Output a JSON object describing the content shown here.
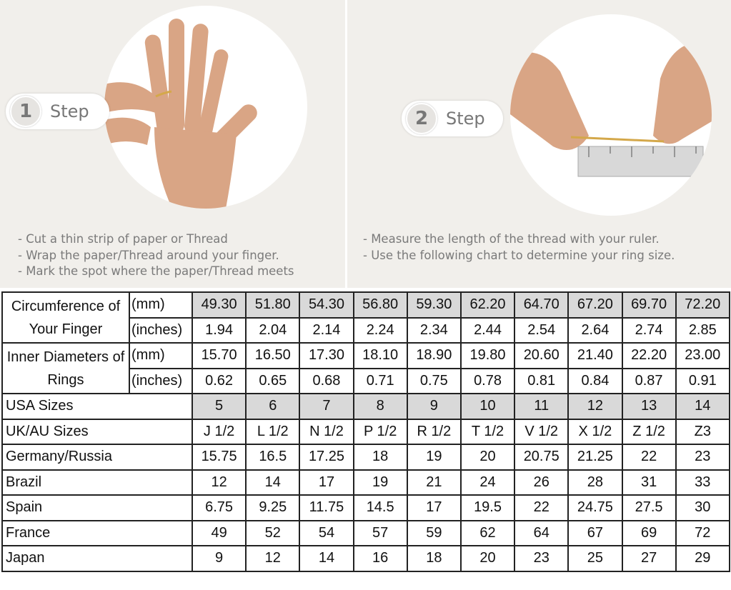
{
  "step1": {
    "number": "1",
    "label": "Step",
    "instructions": [
      "- Cut a thin strip of paper or Thread",
      "- Wrap the paper/Thread around your finger.",
      "- Mark the spot where the paper/Thread meets"
    ]
  },
  "step2": {
    "number": "2",
    "label": "Step",
    "instructions": [
      "- Measure the length of the thread with your ruler.",
      "- Use the following chart to determine your ring size."
    ]
  },
  "colors": {
    "panel_bg": "#f1efeb",
    "highlight": "#d9d9d9",
    "text": "#7a7a7a"
  },
  "table": {
    "circumference": {
      "label": "Circumference of Your Finger",
      "mm_label": "(mm)",
      "in_label": "(inches)",
      "mm": [
        "49.30",
        "51.80",
        "54.30",
        "56.80",
        "59.30",
        "62.20",
        "64.70",
        "67.20",
        "69.70",
        "72.20"
      ],
      "inches": [
        "1.94",
        "2.04",
        "2.14",
        "2.24",
        "2.34",
        "2.44",
        "2.54",
        "2.64",
        "2.74",
        "2.85"
      ]
    },
    "diameter": {
      "label": "Inner Diameters of Rings",
      "mm_label": "(mm)",
      "in_label": "(inches)",
      "mm": [
        "15.70",
        "16.50",
        "17.30",
        "18.10",
        "18.90",
        "19.80",
        "20.60",
        "21.40",
        "22.20",
        "23.00"
      ],
      "inches": [
        "0.62",
        "0.65",
        "0.68",
        "0.71",
        "0.75",
        "0.78",
        "0.81",
        "0.84",
        "0.87",
        "0.91"
      ]
    },
    "rows": [
      {
        "label": "USA Sizes",
        "values": [
          "5",
          "6",
          "7",
          "8",
          "9",
          "10",
          "11",
          "12",
          "13",
          "14"
        ],
        "highlight": true
      },
      {
        "label": "UK/AU Sizes",
        "values": [
          "J 1/2",
          "L 1/2",
          "N 1/2",
          "P 1/2",
          "R 1/2",
          "T 1/2",
          "V 1/2",
          "X 1/2",
          "Z 1/2",
          "Z3"
        ]
      },
      {
        "label": "Germany/Russia",
        "values": [
          "15.75",
          "16.5",
          "17.25",
          "18",
          "19",
          "20",
          "20.75",
          "21.25",
          "22",
          "23"
        ]
      },
      {
        "label": "Brazil",
        "values": [
          "12",
          "14",
          "17",
          "19",
          "21",
          "24",
          "26",
          "28",
          "31",
          "33"
        ]
      },
      {
        "label": "Spain",
        "values": [
          "6.75",
          "9.25",
          "11.75",
          "14.5",
          "17",
          "19.5",
          "22",
          "24.75",
          "27.5",
          "30"
        ]
      },
      {
        "label": "France",
        "values": [
          "49",
          "52",
          "54",
          "57",
          "59",
          "62",
          "64",
          "67",
          "69",
          "72"
        ]
      },
      {
        "label": "Japan",
        "values": [
          "9",
          "12",
          "14",
          "16",
          "18",
          "20",
          "23",
          "25",
          "27",
          "29"
        ]
      }
    ]
  }
}
